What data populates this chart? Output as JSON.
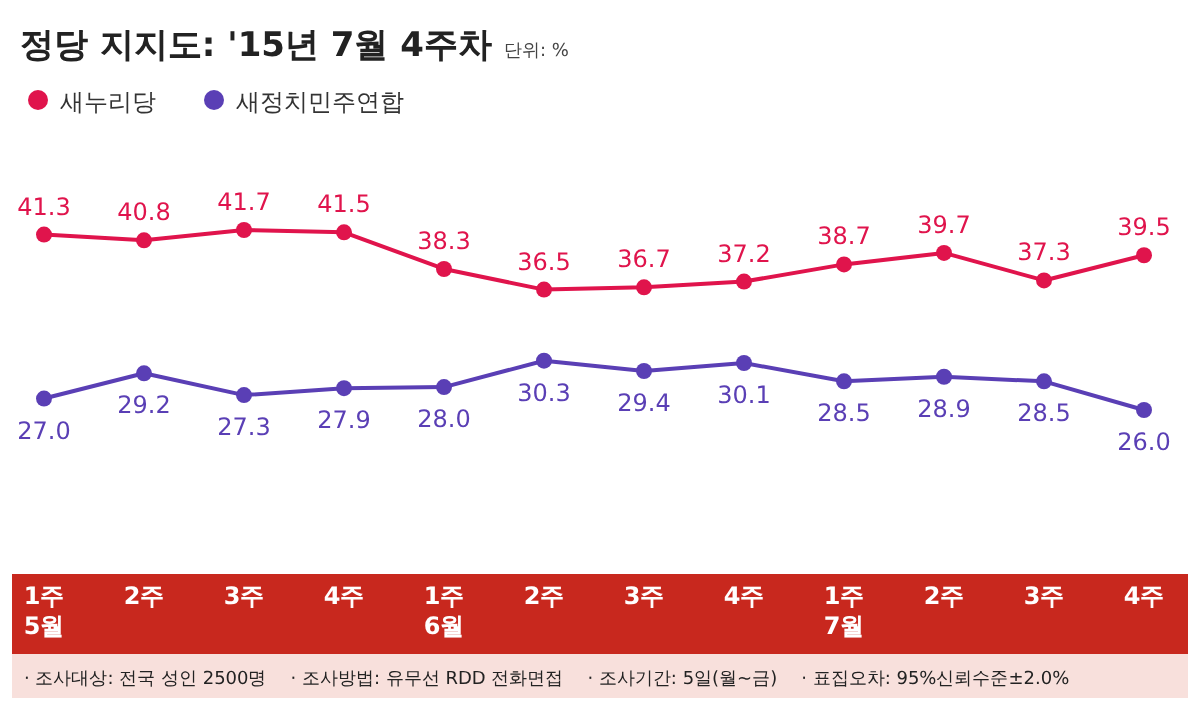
{
  "chart_data": {
    "type": "line",
    "title": "정당 지지도: '15년 7월 4주차",
    "subtitle": "단위: %",
    "categories": [
      "1주\n5월",
      "2주",
      "3주",
      "4주",
      "1주\n6월",
      "2주",
      "3주",
      "4주",
      "1주\n7월",
      "2주",
      "3주",
      "4주"
    ],
    "series": [
      {
        "name": "새누리당",
        "color": "#e0144c",
        "values": [
          41.3,
          40.8,
          41.7,
          41.5,
          38.3,
          36.5,
          36.7,
          37.2,
          38.7,
          39.7,
          37.3,
          39.5
        ],
        "value_labels": [
          "41.3",
          "40.8",
          "41.7",
          "41.5",
          "38.3",
          "36.5",
          "36.7",
          "37.2",
          "38.7",
          "39.7",
          "37.3",
          "39.5"
        ]
      },
      {
        "name": "새정치민주연합",
        "color": "#5a3fb5",
        "values": [
          27.0,
          29.2,
          27.3,
          27.9,
          28.0,
          30.3,
          29.4,
          30.1,
          28.5,
          28.9,
          28.5,
          26.0
        ],
        "value_labels": [
          "27.0",
          "29.2",
          "27.3",
          "27.9",
          "28.0",
          "30.3",
          "29.4",
          "30.1",
          "28.5",
          "28.9",
          "28.5",
          "26.0"
        ]
      }
    ],
    "marker": "circle",
    "legend": "top left",
    "annotations": [
      "· 조사대상: 전국 성인 2500명",
      "· 조사방법: 유무선 RDD 전화면접",
      "· 조사기간: 5일(월~금)",
      "· 표집오차: 95%신뢰수준±2.0%"
    ]
  }
}
